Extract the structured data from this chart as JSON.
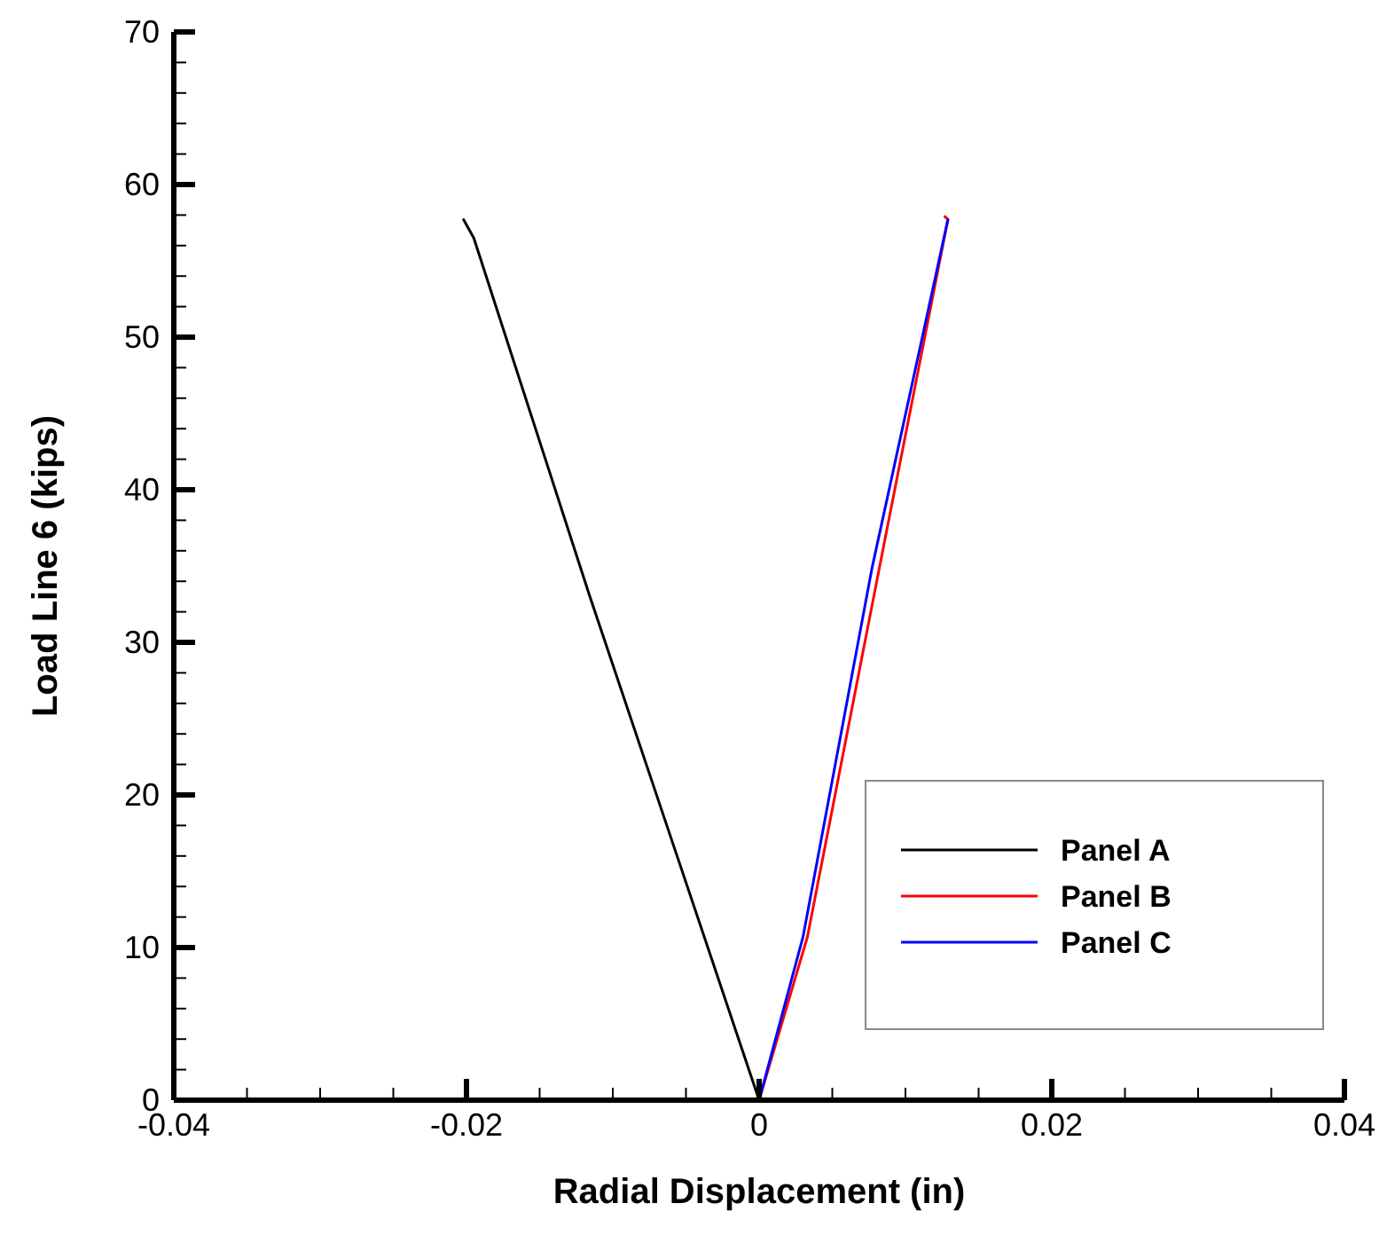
{
  "chart_data": {
    "type": "line",
    "xlabel": "Radial Displacement (in)",
    "ylabel": "Load Line 6 (kips)",
    "xlim": [
      -0.04,
      0.04
    ],
    "xticks": [
      -0.04,
      {
        "value": -0.035,
        "label": null
      },
      {
        "value": -0.03,
        "label": null
      },
      {
        "value": -0.025,
        "label": null
      },
      -0.02,
      {
        "value": -0.015,
        "label": null
      },
      {
        "value": -0.01,
        "label": null
      },
      {
        "value": -0.005,
        "label": null
      },
      0,
      {
        "value": 0.005,
        "label": null
      },
      {
        "value": 0.01,
        "label": null
      },
      {
        "value": 0.015,
        "label": null
      },
      0.02,
      {
        "value": 0.025,
        "label": null
      },
      {
        "value": 0.03,
        "label": null
      },
      {
        "value": 0.035,
        "label": null
      },
      0.04
    ],
    "ylim": [
      0,
      70
    ],
    "yticks": [
      0,
      {
        "value": 2,
        "label": null
      },
      {
        "value": 4,
        "label": null
      },
      {
        "value": 6,
        "label": null
      },
      {
        "value": 8,
        "label": null
      },
      10,
      {
        "value": 12,
        "label": null
      },
      {
        "value": 14,
        "label": null
      },
      {
        "value": 16,
        "label": null
      },
      {
        "value": 18,
        "label": null
      },
      20,
      {
        "value": 22,
        "label": null
      },
      {
        "value": 24,
        "label": null
      },
      {
        "value": 26,
        "label": null
      },
      {
        "value": 28,
        "label": null
      },
      30,
      {
        "value": 32,
        "label": null
      },
      {
        "value": 34,
        "label": null
      },
      {
        "value": 36,
        "label": null
      },
      {
        "value": 38,
        "label": null
      },
      40,
      {
        "value": 42,
        "label": null
      },
      {
        "value": 44,
        "label": null
      },
      {
        "value": 46,
        "label": null
      },
      {
        "value": 48,
        "label": null
      },
      50,
      {
        "value": 52,
        "label": null
      },
      {
        "value": 54,
        "label": null
      },
      {
        "value": 56,
        "label": null
      },
      {
        "value": 58,
        "label": null
      },
      60,
      {
        "value": 62,
        "label": null
      },
      {
        "value": 64,
        "label": null
      },
      {
        "value": 66,
        "label": null
      },
      {
        "value": 68,
        "label": null
      },
      70
    ],
    "grid": false,
    "legend": "bottom right",
    "marker": "none",
    "line_style": "solid",
    "series": [
      {
        "name": "Panel A",
        "color": "#000000",
        "x": [
          0,
          -0.0116,
          -0.0195,
          -0.0202
        ],
        "values": [
          0,
          33.1,
          56.5,
          57.7
        ]
      },
      {
        "name": "Panel B",
        "color": "#ff0000",
        "x": [
          0,
          0.0033,
          0.0082,
          0.0129,
          0.0127
        ],
        "values": [
          0,
          10.7,
          34.8,
          57.7,
          57.9
        ]
      },
      {
        "name": "Panel C",
        "color": "#0000ff",
        "x": [
          0,
          0.003,
          0.0077,
          0.0129
        ],
        "values": [
          0,
          10.7,
          34.8,
          57.7
        ]
      }
    ]
  }
}
